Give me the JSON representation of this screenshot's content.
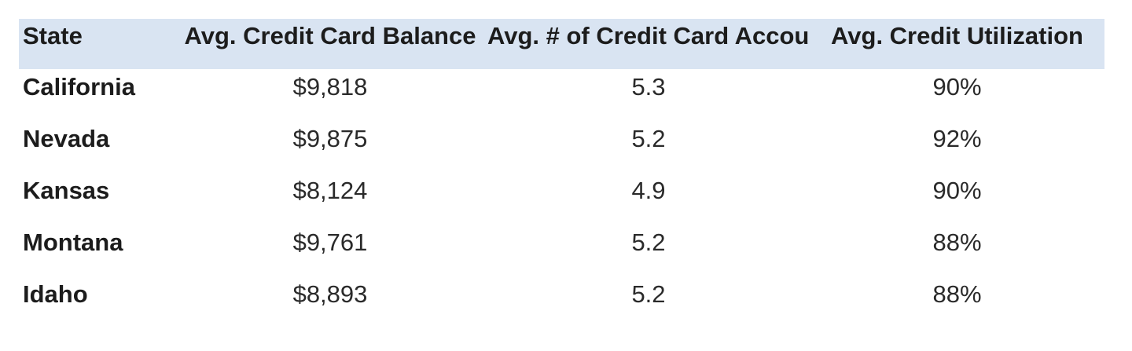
{
  "header": {
    "columns": [
      "State",
      "Avg. Credit Card Balance",
      "Avg. # of Credit Card Accounts",
      "Avg. Credit Utilization"
    ]
  },
  "rows": [
    {
      "cells": [
        "California",
        "$9,818",
        "5.3",
        "90%"
      ]
    },
    {
      "cells": [
        "Nevada",
        "$9,875",
        "5.2",
        "92%"
      ]
    },
    {
      "cells": [
        "Kansas",
        "$8,124",
        "4.9",
        "90%"
      ]
    },
    {
      "cells": [
        "Montana",
        "$9,761",
        "5.2",
        "88%"
      ]
    },
    {
      "cells": [
        "Idaho",
        "$8,893",
        "5.2",
        "88%"
      ]
    }
  ],
  "colors": {
    "header_background": "#d9e4f2",
    "page_background": "#ffffff",
    "text": "#1c1c1c"
  },
  "chart_data": {
    "type": "table",
    "columns": [
      "State",
      "Avg. Credit Card Balance",
      "Avg. # of Credit Card Accounts",
      "Avg. Credit Utilization"
    ],
    "rows": [
      {
        "state": "California",
        "avg_balance_usd": 9818,
        "avg_accounts": 5.3,
        "avg_utilization_pct": 90
      },
      {
        "state": "Nevada",
        "avg_balance_usd": 9875,
        "avg_accounts": 5.2,
        "avg_utilization_pct": 92
      },
      {
        "state": "Kansas",
        "avg_balance_usd": 8124,
        "avg_accounts": 4.9,
        "avg_utilization_pct": 90
      },
      {
        "state": "Montana",
        "avg_balance_usd": 9761,
        "avg_accounts": 5.2,
        "avg_utilization_pct": 88
      },
      {
        "state": "Idaho",
        "avg_balance_usd": 8893,
        "avg_accounts": 5.2,
        "avg_utilization_pct": 88
      }
    ],
    "layout_hints": {
      "header_background": "#d9e4f2",
      "first_column_align": "left",
      "value_columns_align": "center",
      "grid": "off"
    }
  }
}
